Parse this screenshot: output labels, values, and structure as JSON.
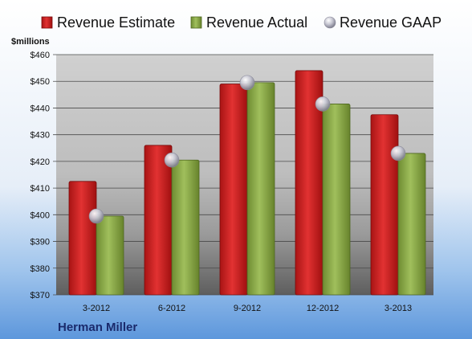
{
  "chart_data": {
    "type": "bar",
    "company": "Herman Miller",
    "unit_label": "$millions",
    "categories": [
      "3-2012",
      "6-2012",
      "9-2012",
      "12-2012",
      "3-2013"
    ],
    "series": [
      {
        "name": "Revenue Estimate",
        "kind": "bar",
        "color": "#d42828",
        "values": [
          412.5,
          426.0,
          449.0,
          454.0,
          437.5
        ]
      },
      {
        "name": "Revenue Actual",
        "kind": "bar",
        "color": "#8fae4b",
        "values": [
          399.5,
          420.5,
          449.5,
          441.5,
          423.0
        ]
      },
      {
        "name": "Revenue GAAP",
        "kind": "marker",
        "color": "#b8b8c8",
        "values": [
          399.5,
          420.5,
          449.5,
          441.5,
          423.0
        ]
      }
    ],
    "ylim": [
      370,
      460
    ],
    "yticks": [
      370,
      380,
      390,
      400,
      410,
      420,
      430,
      440,
      450,
      460
    ],
    "ytick_labels": [
      "$370",
      "$380",
      "$390",
      "$400",
      "$410",
      "$420",
      "$430",
      "$440",
      "$450",
      "$460"
    ],
    "grid": true,
    "legend_position": "top"
  }
}
